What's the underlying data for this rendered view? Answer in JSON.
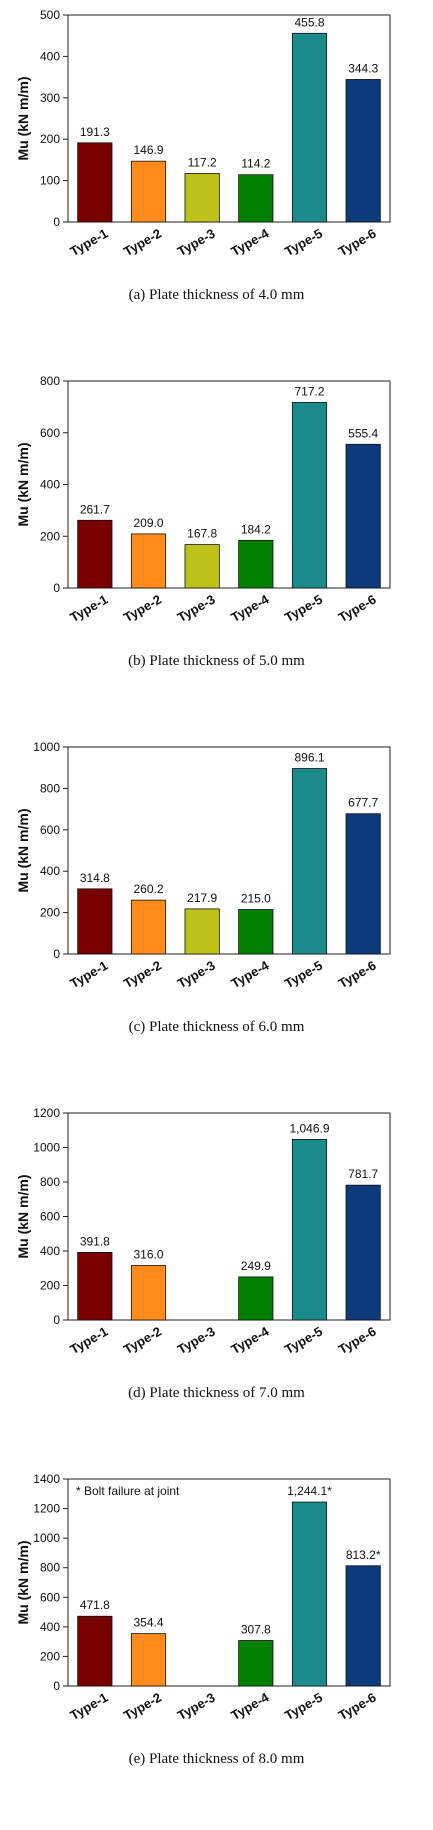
{
  "chart_data": [
    {
      "type": "bar",
      "caption": "(a)  Plate  thickness  of  4.0  mm",
      "ylabel": "Mu (kN m/m)",
      "ylim": [
        0,
        500
      ],
      "yticks": [
        0,
        100,
        200,
        300,
        400,
        500
      ],
      "categories": [
        "Type-1",
        "Type-2",
        "Type-3",
        "Type-4",
        "Type-5",
        "Type-6"
      ],
      "values": [
        191.3,
        146.9,
        117.2,
        114.2,
        455.8,
        344.3
      ],
      "labels": [
        "191.3",
        "146.9",
        "117.2",
        "114.2",
        "455.8",
        "344.3"
      ],
      "colors": [
        "#7a0000",
        "#ff8c1a",
        "#bfc21a",
        "#008000",
        "#1a8a8a",
        "#0d3a7a"
      ]
    },
    {
      "type": "bar",
      "caption": "(b)  Plate  thickness  of  5.0  mm",
      "ylabel": "Mu (kN m/m)",
      "ylim": [
        0,
        800
      ],
      "yticks": [
        0,
        200,
        400,
        600,
        800
      ],
      "categories": [
        "Type-1",
        "Type-2",
        "Type-3",
        "Type-4",
        "Type-5",
        "Type-6"
      ],
      "values": [
        261.7,
        209.0,
        167.8,
        184.2,
        717.2,
        555.4
      ],
      "labels": [
        "261.7",
        "209.0",
        "167.8",
        "184.2",
        "717.2",
        "555.4"
      ],
      "colors": [
        "#7a0000",
        "#ff8c1a",
        "#bfc21a",
        "#008000",
        "#1a8a8a",
        "#0d3a7a"
      ]
    },
    {
      "type": "bar",
      "caption": "(c)  Plate  thickness  of  6.0  mm",
      "ylabel": "Mu (kN m/m)",
      "ylim": [
        0,
        1000
      ],
      "yticks": [
        0,
        200,
        400,
        600,
        800,
        1000
      ],
      "categories": [
        "Type-1",
        "Type-2",
        "Type-3",
        "Type-4",
        "Type-5",
        "Type-6"
      ],
      "values": [
        314.8,
        260.2,
        217.9,
        215.0,
        896.1,
        677.7
      ],
      "labels": [
        "314.8",
        "260.2",
        "217.9",
        "215.0",
        "896.1",
        "677.7"
      ],
      "colors": [
        "#7a0000",
        "#ff8c1a",
        "#bfc21a",
        "#008000",
        "#1a8a8a",
        "#0d3a7a"
      ]
    },
    {
      "type": "bar",
      "caption": "(d)  Plate  thickness  of  7.0  mm",
      "ylabel": "Mu (kN m/m)",
      "ylim": [
        0,
        1200
      ],
      "yticks": [
        0,
        200,
        400,
        600,
        800,
        1000,
        1200
      ],
      "categories": [
        "Type-1",
        "Type-2",
        "Type-3",
        "Type-4",
        "Type-5",
        "Type-6"
      ],
      "values": [
        391.8,
        316.0,
        null,
        249.9,
        1046.9,
        781.7
      ],
      "labels": [
        "391.8",
        "316.0",
        null,
        "249.9",
        "1,046.9",
        "781.7"
      ],
      "colors": [
        "#7a0000",
        "#ff8c1a",
        "#bfc21a",
        "#008000",
        "#1a8a8a",
        "#0d3a7a"
      ]
    },
    {
      "type": "bar",
      "caption": "(e)  Plate  thickness  of  8.0  mm",
      "ylabel": "Mu (kN m/m)",
      "ylim": [
        0,
        1400
      ],
      "yticks": [
        0,
        200,
        400,
        600,
        800,
        1000,
        1200,
        1400
      ],
      "categories": [
        "Type-1",
        "Type-2",
        "Type-3",
        "Type-4",
        "Type-5",
        "Type-6"
      ],
      "values": [
        471.8,
        354.4,
        null,
        307.8,
        1244.1,
        813.2
      ],
      "labels": [
        "471.8",
        "354.4",
        null,
        "307.8",
        "1,244.1*",
        "813.2*"
      ],
      "colors": [
        "#7a0000",
        "#ff8c1a",
        "#bfc21a",
        "#008000",
        "#1a8a8a",
        "#0d3a7a"
      ],
      "annotation": "* Bolt failure at joint"
    }
  ]
}
